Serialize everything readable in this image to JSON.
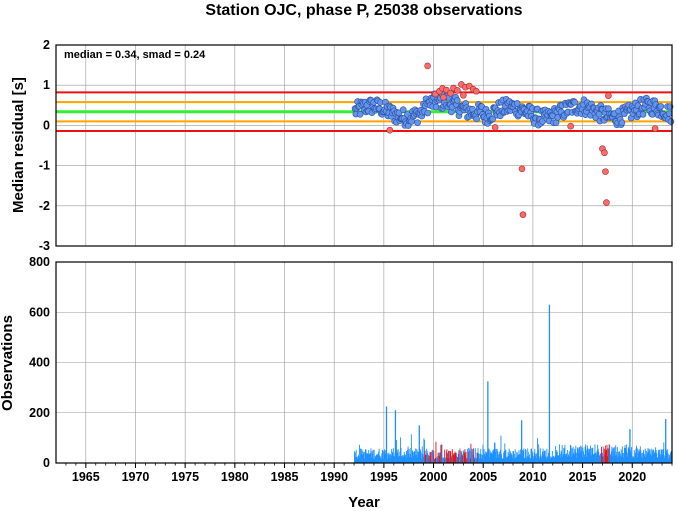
{
  "chart_data": [
    {
      "type": "scatter",
      "title": "Station OJC, phase P, 25038 observations",
      "ylabel": "Median residual [s]",
      "xlim": [
        1962,
        2024
      ],
      "ylim": [
        -3,
        2
      ],
      "yticks": [
        "2",
        "1",
        "0",
        "-1",
        "-2",
        "-3"
      ],
      "annotation": "median = 0.34, smad = 0.24",
      "reference_lines": [
        {
          "y": 0.34,
          "color": "#33ee33",
          "role": "median"
        },
        {
          "y": 0.58,
          "color": "#ffa500",
          "role": "+1 smad"
        },
        {
          "y": 0.1,
          "color": "#ffa500",
          "role": "-1 smad"
        },
        {
          "y": 0.82,
          "color": "#ee1111",
          "role": "+2 smad"
        },
        {
          "y": -0.14,
          "color": "#ee1111",
          "role": "-2 smad"
        }
      ],
      "colors": {
        "inlier": "#6495ed",
        "outlier": "#ff6a6a"
      },
      "outliers": [
        {
          "x": 1999.4,
          "y": 1.48
        },
        {
          "x": 2000.2,
          "y": 0.78
        },
        {
          "x": 2000.6,
          "y": 0.85
        },
        {
          "x": 2000.9,
          "y": 0.92
        },
        {
          "x": 2001.3,
          "y": 0.88
        },
        {
          "x": 2001.7,
          "y": 0.8
        },
        {
          "x": 2002.0,
          "y": 0.93
        },
        {
          "x": 2002.4,
          "y": 0.87
        },
        {
          "x": 2002.8,
          "y": 1.02
        },
        {
          "x": 2003.2,
          "y": 0.95
        },
        {
          "x": 2003.6,
          "y": 0.98
        },
        {
          "x": 2004.0,
          "y": 0.9
        },
        {
          "x": 2004.3,
          "y": 0.85
        },
        {
          "x": 2001.0,
          "y": 0.7
        },
        {
          "x": 2003.0,
          "y": 0.75
        },
        {
          "x": 1995.6,
          "y": -0.12
        },
        {
          "x": 2006.2,
          "y": -0.05
        },
        {
          "x": 2008.9,
          "y": -1.08
        },
        {
          "x": 2009.0,
          "y": -2.22
        },
        {
          "x": 2017.0,
          "y": -0.58
        },
        {
          "x": 2017.2,
          "y": -0.68
        },
        {
          "x": 2017.3,
          "y": -1.15
        },
        {
          "x": 2017.4,
          "y": -1.92
        },
        {
          "x": 2017.6,
          "y": 0.74
        },
        {
          "x": 2013.8,
          "y": -0.02
        },
        {
          "x": 2022.3,
          "y": -0.08
        }
      ]
    },
    {
      "type": "bar",
      "xlabel": "Year",
      "ylabel": "Observations",
      "xlim": [
        1962,
        2024
      ],
      "ylim": [
        0,
        800
      ],
      "xticks": [
        "1965",
        "1970",
        "1975",
        "1980",
        "1985",
        "1990",
        "1995",
        "2000",
        "2005",
        "2010",
        "2015",
        "2020"
      ],
      "yticks": [
        "800",
        "600",
        "400",
        "200",
        "0"
      ],
      "colors": {
        "normal": "#1e90ff",
        "outlier": "#ee1111"
      },
      "spikes": [
        {
          "x": 1995.2,
          "value": 225
        },
        {
          "x": 1996.1,
          "value": 210
        },
        {
          "x": 1998.5,
          "value": 150
        },
        {
          "x": 2005.4,
          "value": 325
        },
        {
          "x": 2008.8,
          "value": 170
        },
        {
          "x": 2011.6,
          "value": 630
        },
        {
          "x": 2019.7,
          "value": 135
        },
        {
          "x": 2023.3,
          "value": 175
        }
      ],
      "outlier_periods": [
        [
          1999.0,
          2004.6
        ],
        [
          2016.8,
          2017.7
        ]
      ]
    }
  ]
}
